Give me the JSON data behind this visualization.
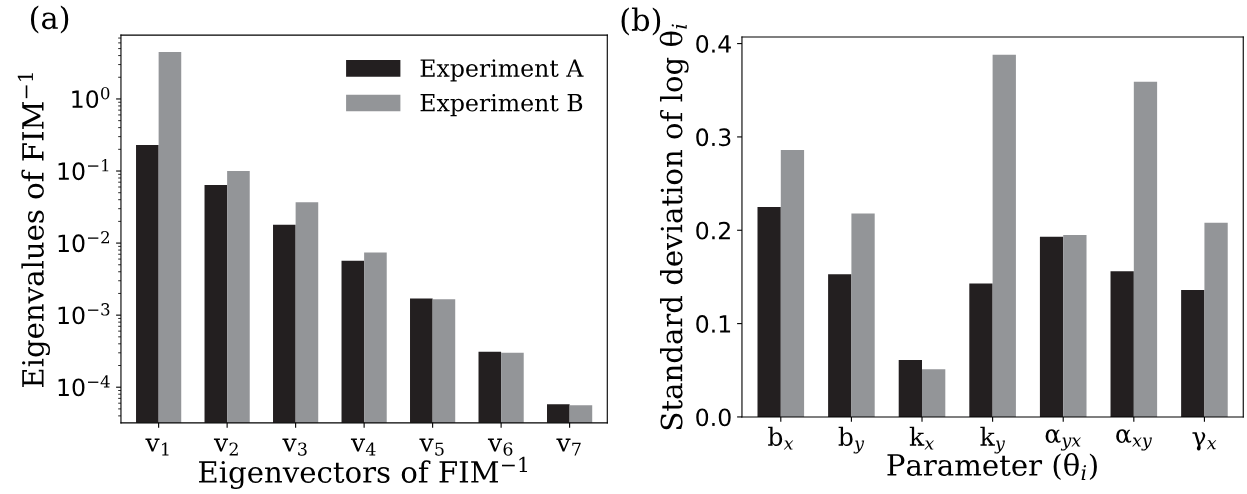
{
  "chart_data": [
    {
      "type": "bar",
      "annotations": [
        "(a)"
      ],
      "xlabel": "Eigenvectors of FIM$^{−1}$",
      "ylabel": "Eigenvalues of FIM$^{−1}$",
      "categories": [
        "v$_{1}$",
        "v$_{2}$",
        "v$_{3}$",
        "v$_{4}$",
        "v$_{5}$",
        "v$_{6}$",
        "v$_{7}$"
      ],
      "series": [
        {
          "name": "Experiment A",
          "color": "#231f20",
          "values": [
            0.23,
            0.064,
            0.018,
            0.0057,
            0.0017,
            0.00031,
            5.8e-05
          ]
        },
        {
          "name": "Experiment B",
          "color": "#939598",
          "values": [
            4.5,
            0.1,
            0.037,
            0.0074,
            0.00166,
            0.0003,
            5.6e-05
          ]
        }
      ],
      "log": true,
      "ylim": [
        3.2e-05,
        7.7
      ],
      "yticks": [
        {
          "value": 0.0001,
          "label": "10$^{−4}$"
        },
        {
          "value": 0.001,
          "label": "10$^{−3}$"
        },
        {
          "value": 0.01,
          "label": "10$^{−2}$"
        },
        {
          "value": 0.1,
          "label": "10$^{−1}$"
        },
        {
          "value": 1,
          "label": "10$^{0}$"
        }
      ],
      "legend": "top right",
      "grid": false
    },
    {
      "type": "bar",
      "annotations": [
        "(b)"
      ],
      "xlabel": "Parameter (θ$_{i}$)",
      "ylabel": "Standard deviation of log θ$_{i}$",
      "categories": [
        "b$_{x}$",
        "b$_{y}$",
        "k$_{x}$",
        "k$_{y}$",
        "α$_{yx}$",
        "α$_{xy}$",
        "γ$_{x}$"
      ],
      "series": [
        {
          "color": "#231f20",
          "values": [
            0.225,
            0.153,
            0.061,
            0.143,
            0.193,
            0.156,
            0.136
          ]
        },
        {
          "color": "#939598",
          "values": [
            0.286,
            0.218,
            0.051,
            0.388,
            0.195,
            0.359,
            0.208
          ]
        }
      ],
      "ylim": [
        0,
        0.407
      ],
      "yticks": [
        {
          "value": 0,
          "label": "0.0"
        },
        {
          "value": 0.1,
          "label": "0.1"
        },
        {
          "value": 0.2,
          "label": "0.2"
        },
        {
          "value": 0.3,
          "label": "0.3"
        },
        {
          "value": 0.4,
          "label": "0.4"
        }
      ],
      "legend": false,
      "grid": false
    }
  ]
}
